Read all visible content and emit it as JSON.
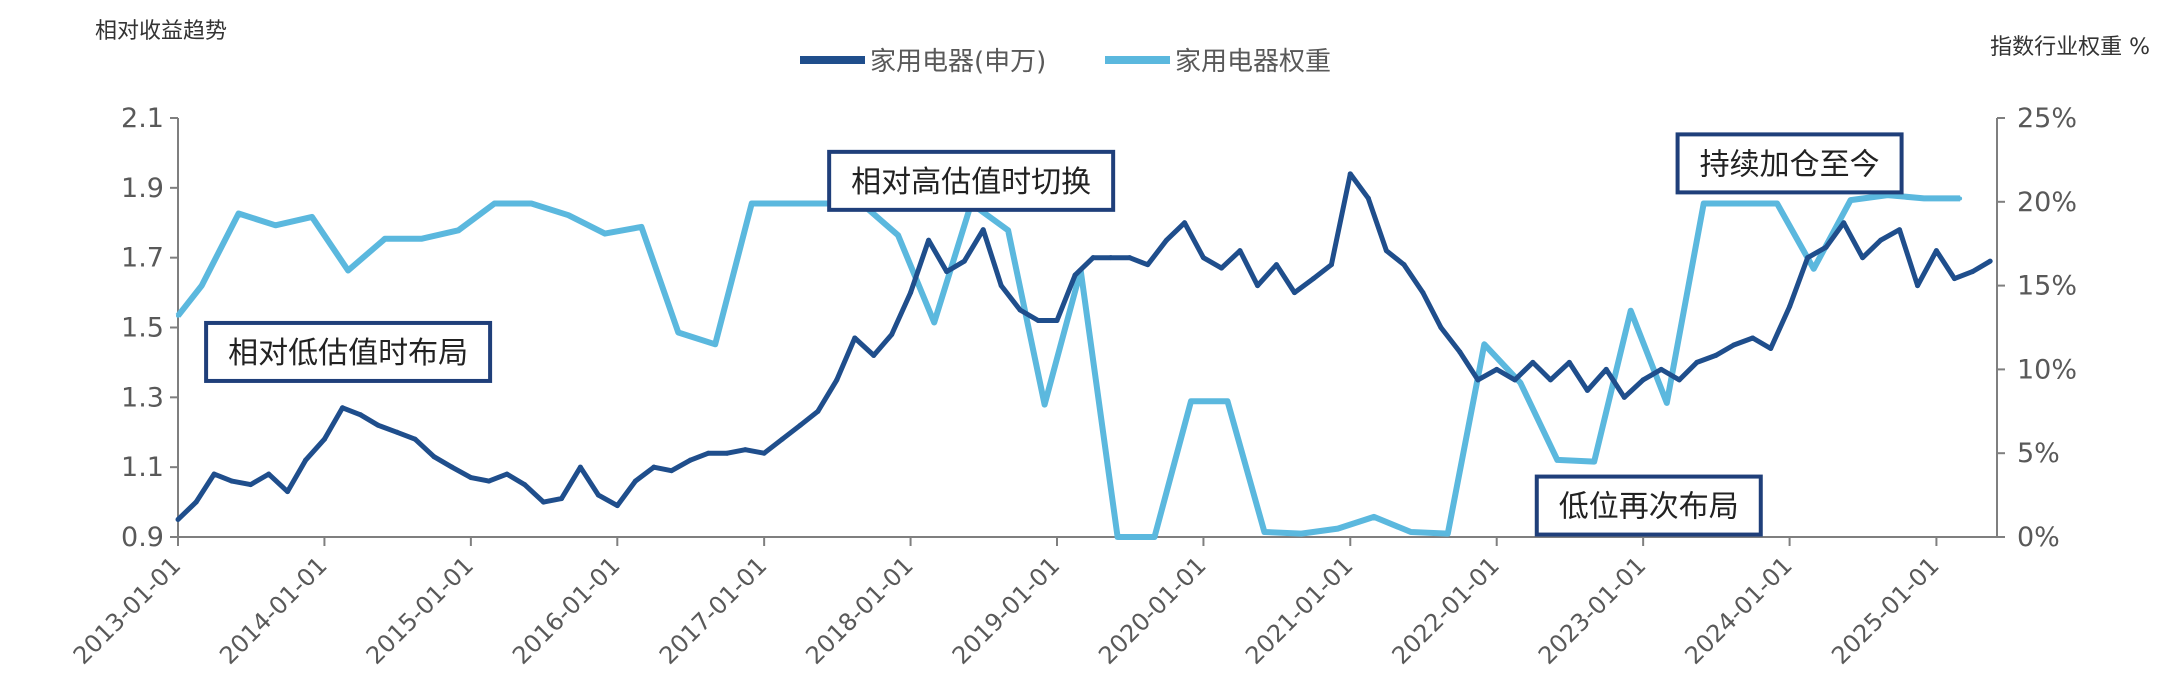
{
  "chart_data": {
    "type": "line",
    "left_axis_label": "相对收益趋势",
    "right_axis_label": "指数行业权重 %",
    "left_ylim": [
      0.9,
      2.1
    ],
    "left_yticks": [
      "0.9",
      "1.1",
      "1.3",
      "1.5",
      "1.7",
      "1.9",
      "2.1"
    ],
    "right_ylim": [
      0,
      25
    ],
    "right_yticks": [
      "0%",
      "5%",
      "10%",
      "15%",
      "20%",
      "25%"
    ],
    "x_range": [
      "2013-01-01",
      "2025-06-01"
    ],
    "x_ticks": [
      "2013-01-01",
      "2014-01-01",
      "2015-01-01",
      "2016-01-01",
      "2017-01-01",
      "2018-01-01",
      "2019-01-01",
      "2020-01-01",
      "2021-01-01",
      "2022-01-01",
      "2023-01-01",
      "2024-01-01",
      "2025-01-01"
    ],
    "grid": false,
    "legend_position": "top-center",
    "series": [
      {
        "name": "家用电器(申万)",
        "axis": "left",
        "color": "#1F4E8C",
        "x": [
          "2013-01-01",
          "2013-02-15",
          "2013-04-01",
          "2013-05-15",
          "2013-07-01",
          "2013-08-15",
          "2013-10-01",
          "2013-11-15",
          "2014-01-01",
          "2014-02-15",
          "2014-04-01",
          "2014-05-15",
          "2014-07-01",
          "2014-08-15",
          "2014-10-01",
          "2014-11-15",
          "2015-01-01",
          "2015-02-15",
          "2015-04-01",
          "2015-05-15",
          "2015-07-01",
          "2015-08-15",
          "2015-10-01",
          "2015-11-15",
          "2016-01-01",
          "2016-02-15",
          "2016-04-01",
          "2016-05-15",
          "2016-07-01",
          "2016-08-15",
          "2016-10-01",
          "2016-11-15",
          "2017-01-01",
          "2017-02-15",
          "2017-04-01",
          "2017-05-15",
          "2017-07-01",
          "2017-08-15",
          "2017-10-01",
          "2017-11-15",
          "2018-01-01",
          "2018-02-15",
          "2018-04-01",
          "2018-05-15",
          "2018-07-01",
          "2018-08-15",
          "2018-10-01",
          "2018-11-15",
          "2019-01-01",
          "2019-02-15",
          "2019-04-01",
          "2019-05-15",
          "2019-07-01",
          "2019-08-15",
          "2019-10-01",
          "2019-11-15",
          "2020-01-01",
          "2020-02-15",
          "2020-04-01",
          "2020-05-15",
          "2020-07-01",
          "2020-08-15",
          "2020-10-01",
          "2020-11-15",
          "2021-01-01",
          "2021-02-15",
          "2021-04-01",
          "2021-05-15",
          "2021-07-01",
          "2021-08-15",
          "2021-10-01",
          "2021-11-15",
          "2022-01-01",
          "2022-02-15",
          "2022-04-01",
          "2022-05-15",
          "2022-07-01",
          "2022-08-15",
          "2022-10-01",
          "2022-11-15",
          "2023-01-01",
          "2023-02-15",
          "2023-04-01",
          "2023-05-15",
          "2023-07-01",
          "2023-08-15",
          "2023-10-01",
          "2023-11-15",
          "2024-01-01",
          "2024-02-15",
          "2024-04-01",
          "2024-05-15",
          "2024-07-01",
          "2024-08-15",
          "2024-10-01",
          "2024-11-15",
          "2025-01-01",
          "2025-02-15",
          "2025-04-01",
          "2025-05-15"
        ],
        "values": [
          0.95,
          1.0,
          1.08,
          1.06,
          1.05,
          1.08,
          1.03,
          1.12,
          1.18,
          1.27,
          1.25,
          1.22,
          1.2,
          1.18,
          1.13,
          1.1,
          1.07,
          1.06,
          1.08,
          1.05,
          1.0,
          1.01,
          1.1,
          1.02,
          0.99,
          1.06,
          1.1,
          1.09,
          1.12,
          1.14,
          1.14,
          1.15,
          1.14,
          1.18,
          1.22,
          1.26,
          1.35,
          1.47,
          1.42,
          1.48,
          1.6,
          1.75,
          1.66,
          1.69,
          1.78,
          1.62,
          1.55,
          1.52,
          1.52,
          1.65,
          1.7,
          1.7,
          1.7,
          1.68,
          1.75,
          1.8,
          1.7,
          1.67,
          1.72,
          1.62,
          1.68,
          1.6,
          1.64,
          1.68,
          1.94,
          1.87,
          1.72,
          1.68,
          1.6,
          1.5,
          1.43,
          1.35,
          1.38,
          1.35,
          1.4,
          1.35,
          1.4,
          1.32,
          1.38,
          1.3,
          1.35,
          1.38,
          1.35,
          1.4,
          1.42,
          1.45,
          1.47,
          1.44,
          1.56,
          1.7,
          1.73,
          1.8,
          1.7,
          1.75,
          1.78,
          1.62,
          1.72,
          1.64,
          1.66,
          1.69
        ]
      },
      {
        "name": "家用电器权重",
        "axis": "right",
        "color": "#5BB8DE",
        "x": [
          "2013-01-01",
          "2013-03-01",
          "2013-06-01",
          "2013-09-01",
          "2013-12-01",
          "2014-03-01",
          "2014-06-01",
          "2014-09-01",
          "2014-12-01",
          "2015-03-01",
          "2015-06-01",
          "2015-09-01",
          "2015-12-01",
          "2016-03-01",
          "2016-06-01",
          "2016-09-01",
          "2016-12-01",
          "2017-03-01",
          "2017-06-01",
          "2017-09-01",
          "2017-12-01",
          "2018-03-01",
          "2018-06-01",
          "2018-09-01",
          "2018-12-01",
          "2019-03-01",
          "2019-06-01",
          "2019-09-01",
          "2019-12-01",
          "2020-03-01",
          "2020-06-01",
          "2020-09-01",
          "2020-12-01",
          "2021-03-01",
          "2021-06-01",
          "2021-09-01",
          "2021-12-01",
          "2022-03-01",
          "2022-06-01",
          "2022-09-01",
          "2022-12-01",
          "2023-03-01",
          "2023-06-01",
          "2023-09-01",
          "2023-12-01",
          "2024-03-01",
          "2024-06-01",
          "2024-09-01",
          "2024-12-01",
          "2025-03-01"
        ],
        "values": [
          13.2,
          15.0,
          19.3,
          18.6,
          19.1,
          15.9,
          17.8,
          17.8,
          18.3,
          19.9,
          19.9,
          19.2,
          18.1,
          18.5,
          12.2,
          11.5,
          19.9,
          19.9,
          19.9,
          19.9,
          18.0,
          12.8,
          19.9,
          18.3,
          7.9,
          15.9,
          0.0,
          0.0,
          8.1,
          8.1,
          0.3,
          0.2,
          0.5,
          1.2,
          0.3,
          0.2,
          11.5,
          9.2,
          4.6,
          4.5,
          13.5,
          8.0,
          19.9,
          19.9,
          19.9,
          16.0,
          20.1,
          20.4,
          20.2,
          20.2
        ]
      }
    ],
    "annotations": [
      {
        "id": "ann1",
        "text": "相对低估值时布局",
        "anchor_x": "2014-03-01",
        "anchor_y": 1.43
      },
      {
        "id": "ann2",
        "text": "相对高估值时切换",
        "anchor_x": "2018-06-01",
        "anchor_y": 1.92
      },
      {
        "id": "ann3",
        "text": "持续加仓至今",
        "anchor_x": "2024-01-01",
        "anchor_y": 1.97
      },
      {
        "id": "ann4",
        "text": "低位再次布局",
        "anchor_x": "2023-01-15",
        "anchor_y": 0.99
      }
    ]
  }
}
